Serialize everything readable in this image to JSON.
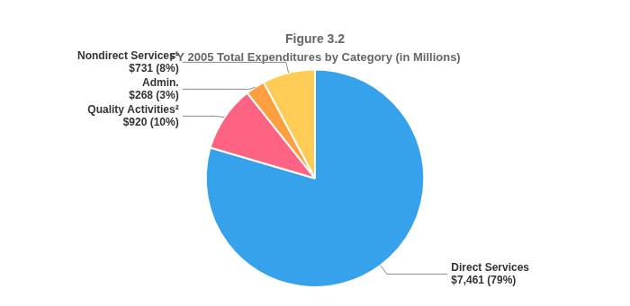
{
  "chart_data": {
    "type": "pie",
    "title": "Figure 3.2",
    "subtitle": "FY 2005 Total Expenditures by Category (in Millions)",
    "categories": [
      "Direct Services",
      "Quality Activities²",
      "Admin.",
      "Nondirect Services¹"
    ],
    "values": [
      7461,
      920,
      268,
      731
    ],
    "value_labels": [
      "$7,461 (79%)",
      "$920 (10%)",
      "$268 (3%)",
      "$731 (8%)"
    ],
    "data_labels": true
  }
}
